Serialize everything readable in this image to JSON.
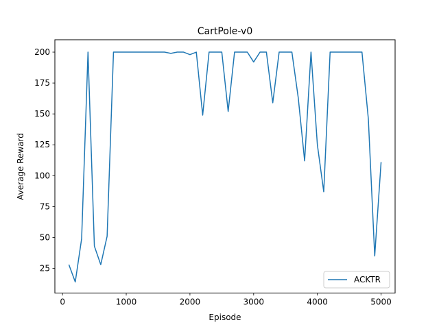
{
  "chart_data": {
    "type": "line",
    "title": "CartPole-v0",
    "xlabel": "Episode",
    "ylabel": "Average Reward",
    "xlim": [
      -120,
      5220
    ],
    "ylim": [
      5,
      210
    ],
    "xticks": [
      0,
      1000,
      2000,
      3000,
      4000,
      5000
    ],
    "yticks": [
      25,
      50,
      75,
      100,
      125,
      150,
      175,
      200
    ],
    "grid": false,
    "legend_position": "lower-right",
    "series": [
      {
        "name": "ACKTR",
        "color": "#1f77b4",
        "x": [
          100,
          200,
          300,
          400,
          500,
          600,
          700,
          800,
          900,
          1000,
          1100,
          1200,
          1300,
          1400,
          1500,
          1600,
          1700,
          1800,
          1900,
          2000,
          2100,
          2200,
          2300,
          2400,
          2500,
          2600,
          2700,
          2800,
          2900,
          3000,
          3100,
          3200,
          3300,
          3400,
          3500,
          3600,
          3700,
          3800,
          3900,
          4000,
          4100,
          4200,
          4300,
          4400,
          4500,
          4600,
          4700,
          4800,
          4900,
          5000
        ],
        "y": [
          28,
          14,
          49,
          200,
          43,
          28,
          51,
          200,
          200,
          200,
          200,
          200,
          200,
          200,
          200,
          200,
          199,
          200,
          200,
          198,
          200,
          149,
          200,
          200,
          200,
          152,
          200,
          200,
          200,
          192,
          200,
          200,
          159,
          200,
          200,
          200,
          163,
          112,
          200,
          125,
          87,
          200,
          200,
          200,
          200,
          200,
          200,
          146,
          35,
          111
        ]
      }
    ]
  }
}
